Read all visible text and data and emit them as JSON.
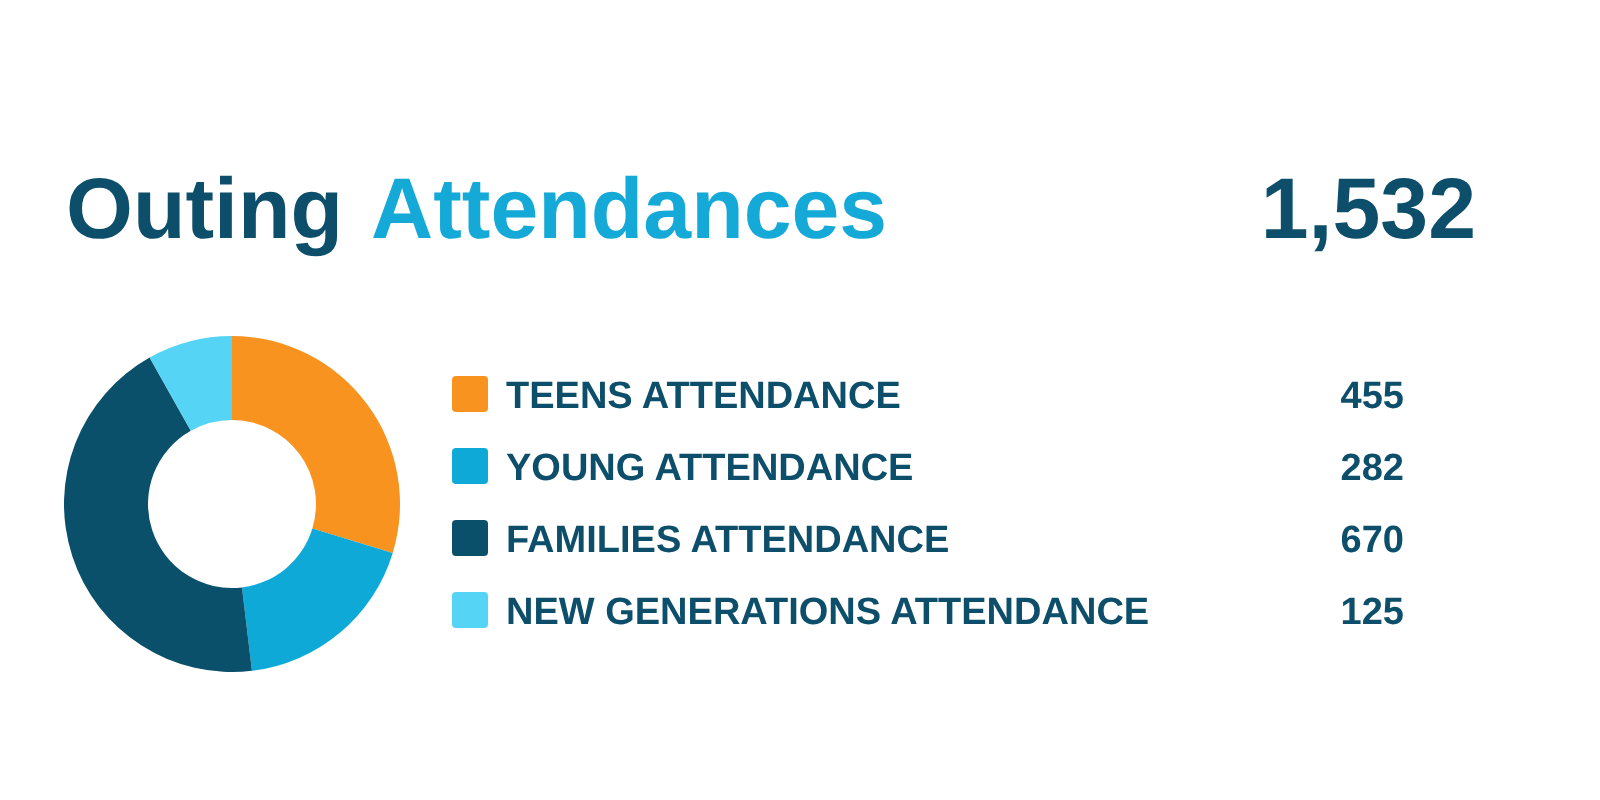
{
  "chart_data": {
    "type": "donut",
    "title": "Outing Attendances",
    "categories": [
      "TEENS ATTENDANCE",
      "YOUNG ATTENDANCE",
      "FAMILIES ATTENDANCE",
      "NEW GENERATIONS ATTENDANCE"
    ],
    "values": [
      455,
      282,
      670,
      125
    ],
    "colors": [
      "#f7931e",
      "#0fa9d8",
      "#0a506b",
      "#55d4f5"
    ],
    "annotations": [
      "1,532"
    ],
    "data_labels": true,
    "legend": "right"
  }
}
